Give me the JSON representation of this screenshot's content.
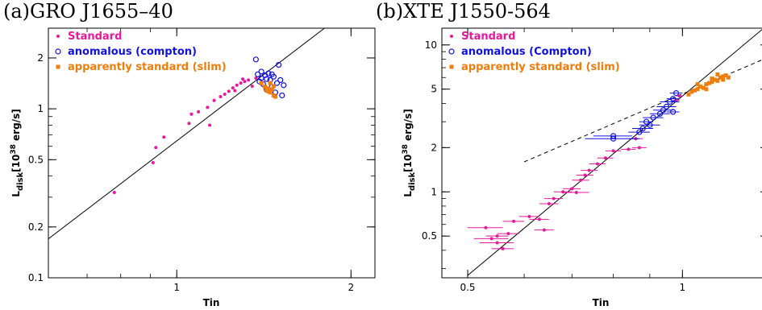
{
  "panels": [
    {
      "title_prefix": "(a)",
      "title": "GRO J1655–40",
      "xlabel": "Tin",
      "ylabel_main": "L",
      "ylabel_sub": "disk",
      "ylabel_rest": "[10",
      "ylabel_sup": "38",
      "ylabel_unit": " erg/s]"
    },
    {
      "title_prefix": "(b)",
      "title": "XTE J1550-564",
      "xlabel": "Tin",
      "ylabel_main": "L",
      "ylabel_sub": "disk",
      "ylabel_rest": "[10",
      "ylabel_sup": "38",
      "ylabel_unit": " erg/s]"
    }
  ],
  "colors": {
    "standard": "#e8189c",
    "anomalous": "#1010e0",
    "slim": "#f07d0a"
  },
  "chart_data": [
    {
      "type": "scatter",
      "title": "GRO J1655–40",
      "xlabel": "Tin",
      "ylabel": "Ldisk[10^38 erg/s]",
      "xscale": "log",
      "yscale": "log",
      "xlim": [
        0.6,
        2.2
      ],
      "ylim": [
        0.1,
        3.0
      ],
      "xticks": [
        {
          "v": 1,
          "label": "1"
        },
        {
          "v": 2,
          "label": "2"
        }
      ],
      "yticks": [
        {
          "v": 0.1,
          "label": "0.1"
        },
        {
          "v": 0.2,
          "label": "0.2"
        },
        {
          "v": 0.5,
          "label": "0.5"
        },
        {
          "v": 1,
          "label": "1"
        },
        {
          "v": 2,
          "label": "2"
        }
      ],
      "legend_position": "top-left",
      "fit_line": {
        "style": "solid",
        "points": [
          [
            0.6,
            0.17
          ],
          [
            1.8,
            3.0
          ]
        ]
      },
      "series": [
        {
          "name": "Standard",
          "marker": "dot",
          "color": "#e8189c",
          "points": [
            [
              0.78,
              0.32
            ],
            [
              0.91,
              0.48
            ],
            [
              0.92,
              0.59
            ],
            [
              0.95,
              0.68
            ],
            [
              1.05,
              0.82
            ],
            [
              1.06,
              0.93
            ],
            [
              1.09,
              0.96
            ],
            [
              1.14,
              0.8
            ],
            [
              1.13,
              1.02
            ],
            [
              1.16,
              1.12
            ],
            [
              1.19,
              1.18
            ],
            [
              1.21,
              1.22
            ],
            [
              1.23,
              1.27
            ],
            [
              1.25,
              1.33
            ],
            [
              1.27,
              1.38
            ],
            [
              1.29,
              1.42
            ],
            [
              1.31,
              1.45
            ],
            [
              1.33,
              1.48
            ],
            [
              1.35,
              1.36
            ],
            [
              1.37,
              1.52
            ],
            [
              1.26,
              1.28
            ],
            [
              1.3,
              1.5
            ]
          ]
        },
        {
          "name": "anomalous (compton)",
          "marker": "open-circle",
          "color": "#1010e0",
          "points": [
            [
              1.37,
              1.96
            ],
            [
              1.38,
              1.6
            ],
            [
              1.39,
              1.45
            ],
            [
              1.4,
              1.52
            ],
            [
              1.41,
              1.4
            ],
            [
              1.42,
              1.58
            ],
            [
              1.43,
              1.3
            ],
            [
              1.44,
              1.62
            ],
            [
              1.45,
              1.48
            ],
            [
              1.46,
              1.35
            ],
            [
              1.47,
              1.55
            ],
            [
              1.48,
              1.25
            ],
            [
              1.49,
              1.42
            ],
            [
              1.5,
              1.82
            ],
            [
              1.51,
              1.48
            ],
            [
              1.52,
              1.2
            ],
            [
              1.53,
              1.38
            ],
            [
              1.4,
              1.66
            ],
            [
              1.43,
              1.5
            ],
            [
              1.46,
              1.6
            ]
          ]
        },
        {
          "name": "apparently standard (slim)",
          "marker": "square",
          "color": "#f07d0a",
          "points": [
            [
              1.4,
              1.42
            ],
            [
              1.42,
              1.35
            ],
            [
              1.43,
              1.28
            ],
            [
              1.44,
              1.32
            ],
            [
              1.45,
              1.25
            ],
            [
              1.46,
              1.3
            ],
            [
              1.47,
              1.36
            ],
            [
              1.48,
              1.18
            ],
            [
              1.45,
              1.42
            ],
            [
              1.44,
              1.27
            ],
            [
              1.47,
              1.2
            ]
          ]
        }
      ]
    },
    {
      "type": "scatter",
      "title": "XTE J1550-564",
      "xlabel": "Tin",
      "ylabel": "Ldisk[10^38 erg/s]",
      "xscale": "log",
      "yscale": "log",
      "xlim": [
        0.46,
        1.32
      ],
      "ylim": [
        0.26,
        13
      ],
      "xticks": [
        {
          "v": 0.5,
          "label": "0.5"
        },
        {
          "v": 1,
          "label": "1"
        }
      ],
      "yticks": [
        {
          "v": 0.5,
          "label": "0.5"
        },
        {
          "v": 1,
          "label": "1"
        },
        {
          "v": 2,
          "label": "2"
        },
        {
          "v": 5,
          "label": "5"
        },
        {
          "v": 10,
          "label": "10"
        }
      ],
      "legend_position": "top-left",
      "fit_line": {
        "style": "solid",
        "points": [
          [
            0.5,
            0.27
          ],
          [
            1.3,
            13.0
          ]
        ]
      },
      "dashed_line": {
        "style": "dashed",
        "points": [
          [
            0.6,
            1.6
          ],
          [
            1.3,
            8.0
          ]
        ]
      },
      "series": [
        {
          "name": "Standard",
          "marker": "dot-errorbar",
          "color": "#e8189c",
          "points": [
            {
              "x": 0.53,
              "y": 0.57,
              "dx": 0.03
            },
            {
              "x": 0.54,
              "y": 0.48,
              "dx": 0.03
            },
            {
              "x": 0.55,
              "y": 0.45,
              "dx": 0.03
            },
            {
              "x": 0.55,
              "y": 0.5,
              "dx": 0.02
            },
            {
              "x": 0.56,
              "y": 0.41,
              "dx": 0.02
            },
            {
              "x": 0.57,
              "y": 0.52,
              "dx": 0.02
            },
            {
              "x": 0.58,
              "y": 0.63,
              "dx": 0.02
            },
            {
              "x": 0.61,
              "y": 0.68,
              "dx": 0.02
            },
            {
              "x": 0.63,
              "y": 0.65,
              "dx": 0.02
            },
            {
              "x": 0.64,
              "y": 0.55,
              "dx": 0.02
            },
            {
              "x": 0.65,
              "y": 0.83,
              "dx": 0.02
            },
            {
              "x": 0.66,
              "y": 0.9,
              "dx": 0.02
            },
            {
              "x": 0.68,
              "y": 1.0,
              "dx": 0.02
            },
            {
              "x": 0.7,
              "y": 1.05,
              "dx": 0.02
            },
            {
              "x": 0.71,
              "y": 0.99,
              "dx": 0.03
            },
            {
              "x": 0.72,
              "y": 1.2,
              "dx": 0.02
            },
            {
              "x": 0.73,
              "y": 1.3,
              "dx": 0.02
            },
            {
              "x": 0.74,
              "y": 1.4,
              "dx": 0.02
            },
            {
              "x": 0.76,
              "y": 1.55,
              "dx": 0.02
            },
            {
              "x": 0.78,
              "y": 1.7,
              "dx": 0.02
            },
            {
              "x": 0.8,
              "y": 1.9,
              "dx": 0.02
            },
            {
              "x": 0.84,
              "y": 1.95,
              "dx": 0.02
            },
            {
              "x": 0.87,
              "y": 2.0,
              "dx": 0.02
            },
            {
              "x": 0.86,
              "y": 2.3,
              "dx": 0.02
            },
            {
              "x": 0.98,
              "y": 4.2,
              "dx": 0.01
            },
            {
              "x": 0.99,
              "y": 4.5,
              "dx": 0.01
            }
          ]
        },
        {
          "name": "anomalous (Compton)",
          "marker": "open-circle-errorbar",
          "color": "#1010e0",
          "points": [
            {
              "x": 0.8,
              "y": 2.3,
              "dx": 0.07
            },
            {
              "x": 0.8,
              "y": 2.4,
              "dx": 0.05
            },
            {
              "x": 0.87,
              "y": 2.55,
              "dx": 0.03
            },
            {
              "x": 0.88,
              "y": 2.7,
              "dx": 0.03
            },
            {
              "x": 0.9,
              "y": 2.85,
              "dx": 0.03
            },
            {
              "x": 0.89,
              "y": 3.0,
              "dx": 0.02
            },
            {
              "x": 0.91,
              "y": 3.2,
              "dx": 0.03
            },
            {
              "x": 0.93,
              "y": 3.4,
              "dx": 0.03
            },
            {
              "x": 0.94,
              "y": 3.6,
              "dx": 0.03
            },
            {
              "x": 0.95,
              "y": 3.8,
              "dx": 0.03
            },
            {
              "x": 0.96,
              "y": 4.1,
              "dx": 0.03
            },
            {
              "x": 0.97,
              "y": 3.5,
              "dx": 0.02
            },
            {
              "x": 0.97,
              "y": 4.3,
              "dx": 0.02
            },
            {
              "x": 0.98,
              "y": 4.7,
              "dx": 0.02
            }
          ]
        },
        {
          "name": "apparently standard (slim)",
          "marker": "square",
          "color": "#f07d0a",
          "points": [
            [
              1.02,
              4.6
            ],
            [
              1.03,
              4.8
            ],
            [
              1.04,
              4.9
            ],
            [
              1.05,
              5.0
            ],
            [
              1.06,
              5.2
            ],
            [
              1.07,
              5.1
            ],
            [
              1.08,
              5.4
            ],
            [
              1.09,
              5.5
            ],
            [
              1.1,
              5.6
            ],
            [
              1.11,
              5.8
            ],
            [
              1.12,
              5.7
            ],
            [
              1.13,
              6.0
            ],
            [
              1.14,
              6.1
            ],
            [
              1.15,
              6.2
            ],
            [
              1.16,
              6.0
            ],
            [
              1.05,
              5.4
            ],
            [
              1.1,
              5.9
            ],
            [
              1.12,
              6.3
            ],
            [
              1.08,
              5.0
            ],
            [
              1.14,
              5.8
            ]
          ]
        }
      ]
    }
  ]
}
